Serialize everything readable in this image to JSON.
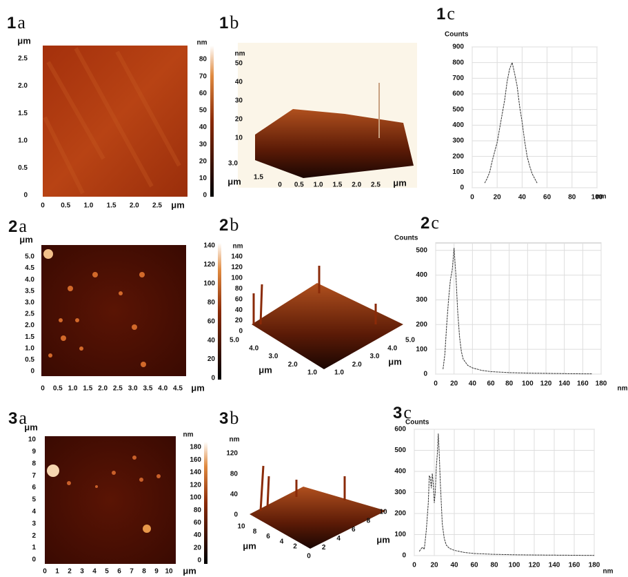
{
  "panels": [
    {
      "number": "1",
      "letter": "a"
    },
    {
      "number": "1",
      "letter": "b"
    },
    {
      "number": "1",
      "letter": "c"
    },
    {
      "number": "2",
      "letter": "a"
    },
    {
      "number": "2",
      "letter": "b"
    },
    {
      "number": "2",
      "letter": "c"
    },
    {
      "number": "3",
      "letter": "a"
    },
    {
      "number": "3",
      "letter": "b"
    },
    {
      "number": "3",
      "letter": "c"
    }
  ],
  "images": [
    {
      "y_unit": "μm",
      "y_ticks": [
        "2.5",
        "2.0",
        "1.5",
        "1.0",
        "0.5",
        "0"
      ],
      "x_ticks": [
        "0",
        "0.5",
        "1.0",
        "1.5",
        "2.0",
        "2.5"
      ],
      "x_unit": "μm",
      "bar_unit": "nm",
      "bar_ticks": [
        "80",
        "70",
        "60",
        "50",
        "40",
        "30",
        "20",
        "10",
        "0"
      ]
    },
    {
      "y_unit": "μm",
      "y_ticks": [
        "5.0",
        "4.5",
        "4.0",
        "3.5",
        "3.0",
        "2.5",
        "2.0",
        "1.5",
        "1.0",
        "0.5",
        "0"
      ],
      "x_ticks": [
        "0",
        "0.5",
        "1.0",
        "1.5",
        "2.0",
        "2.5",
        "3.0",
        "3.5",
        "4.0",
        "4.5"
      ],
      "x_unit": "μm",
      "bar_ticks": [
        "140",
        "120",
        "100",
        "80",
        "60",
        "40",
        "20",
        "0"
      ]
    },
    {
      "y_unit": "μm",
      "y_ticks": [
        "10",
        "9",
        "8",
        "7",
        "6",
        "5",
        "4",
        "3",
        "2",
        "1",
        "0"
      ],
      "x_ticks": [
        "0",
        "1",
        "2",
        "3",
        "4",
        "5",
        "6",
        "7",
        "8",
        "9",
        "10"
      ],
      "x_unit": "μm",
      "bar_unit": "nm",
      "bar_ticks": [
        "180",
        "160",
        "140",
        "120",
        "100",
        "80",
        "60",
        "40",
        "20",
        "0"
      ]
    }
  ],
  "surfaces": [
    {
      "z_unit": "nm",
      "z_ticks": [
        "50",
        "40",
        "30",
        "20",
        "10"
      ],
      "left_ticks": [
        "3.0",
        "1.5"
      ],
      "left_unit": "μm",
      "right_ticks": [
        "0",
        "0.5",
        "1.0",
        "1.5",
        "2.0",
        "2.5"
      ],
      "right_unit": "μm"
    },
    {
      "z_unit": "nm",
      "z_ticks": [
        "140",
        "120",
        "100",
        "80",
        "60",
        "40",
        "20",
        "0"
      ],
      "left_ticks": [
        "5.0",
        "4.0",
        "3.0",
        "2.0",
        "1.0"
      ],
      "left_unit": "μm",
      "right_ticks": [
        "1.0",
        "2.0",
        "3.0",
        "4.0",
        "5.0"
      ],
      "right_unit": "μm"
    },
    {
      "z_unit": "nm",
      "z_ticks": [
        "120",
        "80",
        "40",
        "0"
      ],
      "left_ticks": [
        "10",
        "8",
        "6",
        "4",
        "2"
      ],
      "left_unit": "μm",
      "right_ticks": [
        "0",
        "2",
        "4",
        "6",
        "8",
        "10"
      ],
      "right_unit": "μm"
    }
  ],
  "chart_data": [
    {
      "type": "line",
      "ylabel": "Counts",
      "xlabel": "nm",
      "color": "#333333",
      "grid": true,
      "x": [
        10,
        12,
        14,
        16,
        18,
        20,
        22,
        24,
        26,
        28,
        30,
        32,
        34,
        36,
        38,
        40,
        42,
        44,
        46,
        48,
        50,
        52
      ],
      "values": [
        30,
        60,
        100,
        170,
        230,
        290,
        380,
        470,
        560,
        680,
        760,
        800,
        730,
        650,
        520,
        420,
        300,
        200,
        140,
        90,
        60,
        30
      ],
      "xlim": [
        0,
        100
      ],
      "ylim": [
        0,
        900
      ],
      "xticks": [
        0,
        20,
        40,
        60,
        80,
        100
      ],
      "yticks": [
        0,
        100,
        200,
        300,
        400,
        500,
        600,
        700,
        800,
        900
      ]
    },
    {
      "type": "line",
      "ylabel": "Counts",
      "xlabel": "nm",
      "color": "#333333",
      "grid": true,
      "x": [
        8,
        10,
        12,
        14,
        16,
        18,
        20,
        22,
        24,
        26,
        28,
        30,
        35,
        40,
        50,
        60,
        80,
        100,
        120,
        140,
        160,
        170
      ],
      "values": [
        20,
        80,
        200,
        300,
        380,
        420,
        510,
        400,
        250,
        150,
        90,
        60,
        35,
        25,
        15,
        10,
        6,
        4,
        3,
        2,
        1,
        1
      ],
      "xlim": [
        0,
        180
      ],
      "ylim": [
        0,
        530
      ],
      "xticks": [
        0,
        20,
        40,
        60,
        80,
        100,
        120,
        140,
        160,
        180
      ],
      "yticks": [
        0,
        100,
        200,
        300,
        400,
        500
      ]
    },
    {
      "type": "line",
      "ylabel": "Counts",
      "xlabel": "nm",
      "color": "#333333",
      "grid": true,
      "x": [
        5,
        8,
        10,
        12,
        14,
        15,
        16,
        17,
        18,
        19,
        20,
        21,
        22,
        23,
        24,
        25,
        26,
        27,
        28,
        30,
        32,
        35,
        40,
        50,
        60,
        80,
        100,
        120,
        150,
        180
      ],
      "values": [
        20,
        40,
        30,
        120,
        250,
        380,
        370,
        320,
        390,
        340,
        250,
        300,
        420,
        480,
        580,
        480,
        350,
        250,
        150,
        80,
        50,
        35,
        25,
        15,
        10,
        6,
        4,
        3,
        2,
        1
      ],
      "xlim": [
        0,
        180
      ],
      "ylim": [
        0,
        600
      ],
      "xticks": [
        0,
        20,
        40,
        60,
        80,
        100,
        120,
        140,
        160,
        180
      ],
      "yticks": [
        0,
        100,
        200,
        300,
        400,
        500,
        600
      ]
    }
  ]
}
